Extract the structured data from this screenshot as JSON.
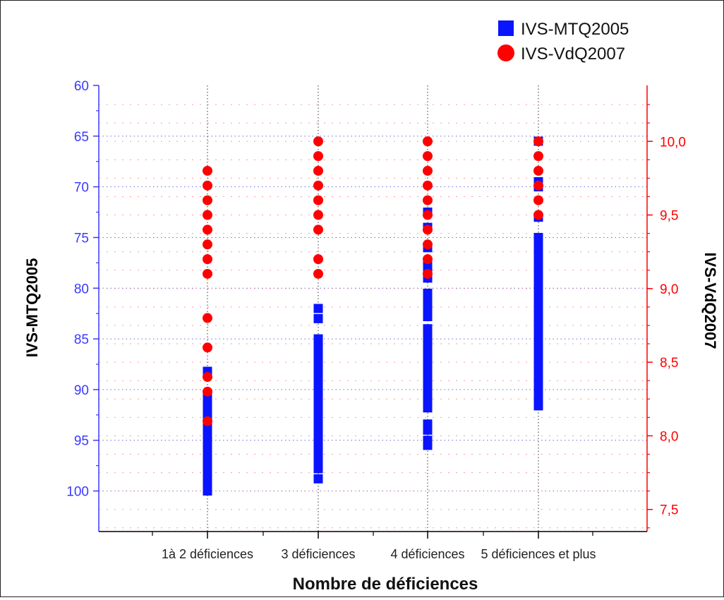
{
  "chart_data": {
    "type": "scatter",
    "categories": [
      "1à 2 déficiences",
      "3 déficiences",
      "4 déficiences",
      "5 déficiences et plus"
    ],
    "xlabel": "Nombre de déficiences",
    "left_axis": {
      "label": "IVS-MTQ2005",
      "ticks": [
        60,
        65,
        70,
        75,
        80,
        85,
        90,
        95,
        100
      ],
      "range": [
        60,
        104
      ],
      "reversed": true,
      "color": "#3a3aff"
    },
    "right_axis": {
      "label": "IVS-VdQ2007",
      "ticks": [
        "10,0",
        "9,5",
        "9,0",
        "8,5",
        "8,0",
        "7,5"
      ],
      "tick_values": [
        10.0,
        9.5,
        9.0,
        8.5,
        8.0,
        7.5
      ],
      "range": [
        7.35,
        10.38
      ],
      "color": "#ff0000"
    },
    "legend_position": "top-right",
    "grid": true,
    "series": [
      {
        "name": "IVS-MTQ2005",
        "axis": "left",
        "marker": "square",
        "color": "#0a14ff",
        "groups": [
          [
            88.2,
            90.5,
            91.0,
            91.6,
            92.2,
            92.8,
            93.4,
            94.0,
            94.6,
            95.2,
            95.8,
            96.4,
            97.0,
            97.6,
            98.2,
            98.8,
            99.4,
            100.0
          ],
          [
            82.0,
            83.0,
            85.0,
            85.6,
            86.2,
            86.8,
            87.4,
            88.0,
            88.6,
            89.2,
            89.8,
            90.4,
            91.0,
            91.6,
            92.2,
            92.8,
            93.4,
            94.0,
            94.6,
            95.2,
            95.8,
            96.4,
            97.2,
            97.8,
            98.8
          ],
          [
            72.5,
            74.0,
            76.0,
            77.5,
            78.2,
            79.0,
            80.5,
            81.2,
            82.0,
            82.8,
            84.0,
            84.6,
            85.2,
            85.8,
            86.4,
            87.0,
            87.6,
            88.2,
            88.8,
            89.4,
            90.0,
            90.6,
            91.2,
            91.8,
            93.4,
            94.0,
            95.0,
            95.5
          ],
          [
            65.5,
            69.5,
            70.0,
            73.0,
            75.0,
            75.8,
            76.6,
            77.4,
            78.2,
            79.0,
            79.8,
            80.6,
            81.4,
            82.2,
            83.0,
            83.8,
            84.6,
            85.4,
            86.2,
            87.0,
            87.8,
            88.6,
            89.4,
            90.2,
            91.0,
            91.6
          ]
        ]
      },
      {
        "name": "IVS-VdQ2007",
        "axis": "right",
        "marker": "circle",
        "color": "#ff0000",
        "groups": [
          [
            9.8,
            9.7,
            9.6,
            9.5,
            9.4,
            9.3,
            9.2,
            9.1,
            8.8,
            8.6,
            8.4,
            8.3,
            8.1
          ],
          [
            10.0,
            9.9,
            9.8,
            9.7,
            9.6,
            9.5,
            9.4,
            9.2,
            9.1
          ],
          [
            10.0,
            9.9,
            9.8,
            9.7,
            9.6,
            9.5,
            9.4,
            9.3,
            9.2,
            9.1
          ],
          [
            10.0,
            9.9,
            9.8,
            9.7,
            9.6,
            9.5
          ]
        ]
      }
    ]
  }
}
